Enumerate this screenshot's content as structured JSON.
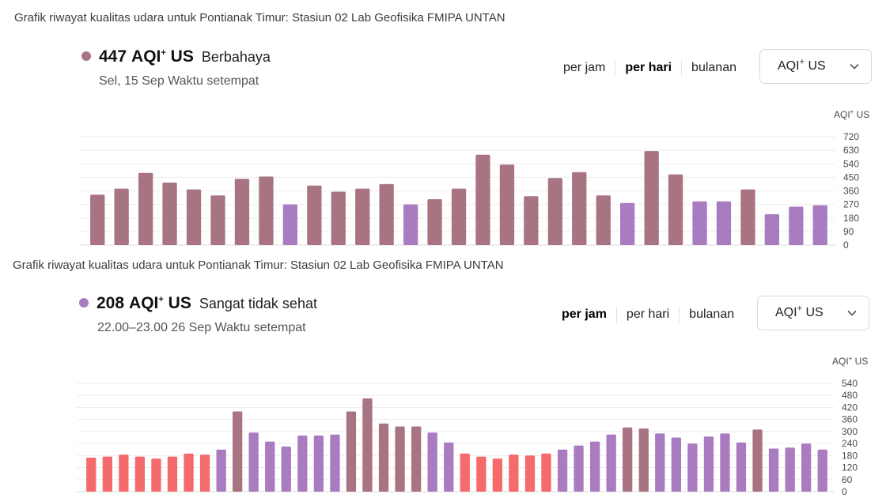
{
  "panels": [
    {
      "caption": "Grafik riwayat kualitas udara untuk Pontianak Timur: Stasiun 02 Lab Geofisika FMIPA UNTAN",
      "headline": {
        "value": "447",
        "unit_main": "AQI",
        "unit_sup": "+",
        "unit_suffix": "US",
        "status": "Berbahaya",
        "dot_color": "#a87482"
      },
      "subtitle": "Sel, 15 Sep Waktu setempat",
      "tabs": [
        {
          "label": "per jam",
          "active": false
        },
        {
          "label": "per hari",
          "active": true
        },
        {
          "label": "bulanan",
          "active": false
        }
      ],
      "select": {
        "main": "AQI",
        "sup": "+",
        "suffix": "US"
      }
    },
    {
      "caption": "Grafik riwayat kualitas udara untuk Pontianak Timur: Stasiun 02 Lab Geofisika FMIPA UNTAN",
      "headline": {
        "value": "208",
        "unit_main": "AQI",
        "unit_sup": "+",
        "unit_suffix": "US",
        "status": "Sangat tidak sehat",
        "dot_color": "#a97bc1"
      },
      "subtitle": "22.00–23.00 26 Sep Waktu setempat",
      "tabs": [
        {
          "label": "per jam",
          "active": true
        },
        {
          "label": "per hari",
          "active": false
        },
        {
          "label": "bulanan",
          "active": false
        }
      ],
      "select": {
        "main": "AQI",
        "sup": "+",
        "suffix": "US"
      }
    }
  ],
  "colors": {
    "hazardous": "#a87482",
    "very_unhealthy": "#a97bc1",
    "unhealthy": "#f46a6d"
  },
  "chart_data": [
    {
      "type": "bar",
      "unit_label": {
        "main": "AQI",
        "sup": "+",
        "suffix": "US"
      },
      "ylim": [
        0,
        720
      ],
      "yticks": [
        0,
        90,
        180,
        270,
        360,
        450,
        540,
        630,
        720
      ],
      "values": [
        335,
        375,
        480,
        415,
        370,
        330,
        440,
        455,
        270,
        395,
        355,
        375,
        405,
        270,
        305,
        375,
        600,
        535,
        325,
        445,
        485,
        330,
        280,
        625,
        470,
        290,
        290,
        370,
        205,
        255,
        265
      ],
      "categories_aqi": [
        "hazardous",
        "hazardous",
        "hazardous",
        "hazardous",
        "hazardous",
        "hazardous",
        "hazardous",
        "hazardous",
        "very_unhealthy",
        "hazardous",
        "hazardous",
        "hazardous",
        "hazardous",
        "very_unhealthy",
        "hazardous",
        "hazardous",
        "hazardous",
        "hazardous",
        "hazardous",
        "hazardous",
        "hazardous",
        "hazardous",
        "very_unhealthy",
        "hazardous",
        "hazardous",
        "very_unhealthy",
        "very_unhealthy",
        "hazardous",
        "very_unhealthy",
        "very_unhealthy",
        "very_unhealthy"
      ],
      "grid": true
    },
    {
      "type": "bar",
      "unit_label": {
        "main": "AQI",
        "sup": "+",
        "suffix": "US"
      },
      "ylim": [
        0,
        540
      ],
      "yticks": [
        0,
        60,
        120,
        180,
        240,
        300,
        360,
        420,
        480,
        540
      ],
      "values": [
        170,
        175,
        185,
        175,
        165,
        175,
        190,
        185,
        210,
        400,
        295,
        250,
        225,
        280,
        280,
        285,
        400,
        465,
        340,
        325,
        325,
        295,
        245,
        190,
        175,
        165,
        185,
        180,
        190,
        210,
        230,
        250,
        285,
        320,
        315,
        290,
        270,
        240,
        275,
        290,
        245,
        310,
        215,
        220,
        240,
        210
      ],
      "categories_aqi": [
        "unhealthy",
        "unhealthy",
        "unhealthy",
        "unhealthy",
        "unhealthy",
        "unhealthy",
        "unhealthy",
        "unhealthy",
        "very_unhealthy",
        "hazardous",
        "very_unhealthy",
        "very_unhealthy",
        "very_unhealthy",
        "very_unhealthy",
        "very_unhealthy",
        "very_unhealthy",
        "hazardous",
        "hazardous",
        "hazardous",
        "hazardous",
        "hazardous",
        "very_unhealthy",
        "very_unhealthy",
        "unhealthy",
        "unhealthy",
        "unhealthy",
        "unhealthy",
        "unhealthy",
        "unhealthy",
        "very_unhealthy",
        "very_unhealthy",
        "very_unhealthy",
        "very_unhealthy",
        "hazardous",
        "hazardous",
        "very_unhealthy",
        "very_unhealthy",
        "very_unhealthy",
        "very_unhealthy",
        "very_unhealthy",
        "very_unhealthy",
        "hazardous",
        "very_unhealthy",
        "very_unhealthy",
        "very_unhealthy",
        "very_unhealthy"
      ],
      "grid": true
    }
  ]
}
